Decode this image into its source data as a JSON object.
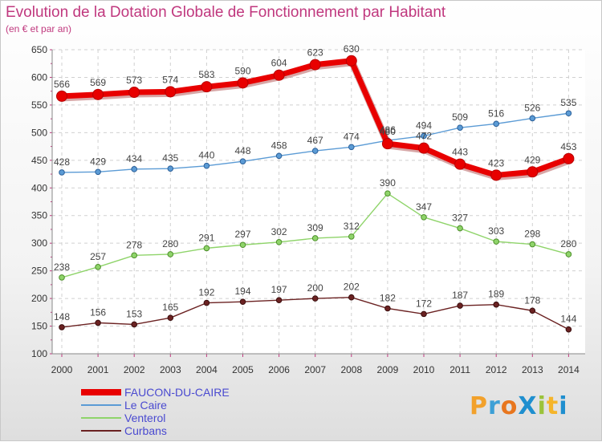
{
  "title": "Evolution de la Dotation Globale de Fonctionnement par Habitant",
  "subtitle": "(en € et par an)",
  "logo": "ProXiti",
  "chart_data": {
    "type": "line",
    "categories": [
      "2000",
      "2001",
      "2002",
      "2003",
      "2004",
      "2005",
      "2006",
      "2007",
      "2008",
      "2009",
      "2010",
      "2011",
      "2012",
      "2013",
      "2014"
    ],
    "ylim": [
      100,
      650
    ],
    "yticks": [
      100,
      150,
      200,
      250,
      300,
      350,
      400,
      450,
      500,
      550,
      600,
      650
    ],
    "grid": true,
    "legend_position": "bottom-left",
    "series": [
      {
        "name": "FAUCON-DU-CAIRE",
        "color": "#e80000",
        "values": [
          566,
          569,
          573,
          574,
          583,
          590,
          604,
          623,
          630,
          480,
          472,
          443,
          423,
          429,
          453
        ],
        "labels": [
          "566",
          "569",
          "573",
          "574",
          "583",
          "590",
          "604",
          "623",
          "630",
          "480",
          "472",
          "443",
          "423",
          "429",
          "453"
        ]
      },
      {
        "name": "Le Caire",
        "color": "#5b9bd5",
        "values": [
          428,
          429,
          434,
          435,
          440,
          448,
          458,
          467,
          474,
          486,
          494,
          509,
          516,
          526,
          535
        ],
        "labels": [
          "428",
          "429",
          "434",
          "435",
          "440",
          "448",
          "458",
          "467",
          "474",
          "486",
          "494",
          "509",
          "516",
          "526",
          "535"
        ]
      },
      {
        "name": "Venterol",
        "color": "#8fd46a",
        "values": [
          238,
          257,
          278,
          280,
          291,
          297,
          302,
          309,
          312,
          390,
          347,
          327,
          303,
          298,
          280
        ],
        "labels": [
          "238",
          "257",
          "278",
          "280",
          "291",
          "297",
          "302",
          "309",
          "312",
          "390",
          "347",
          "327",
          "303",
          "298",
          "280"
        ]
      },
      {
        "name": "Curbans",
        "color": "#6b2222",
        "values": [
          148,
          156,
          153,
          165,
          192,
          194,
          197,
          200,
          202,
          182,
          172,
          187,
          189,
          178,
          144
        ],
        "labels": [
          "148",
          "156",
          "153",
          "165",
          "192",
          "194",
          "197",
          "200",
          "202",
          "182",
          "172",
          "187",
          "189",
          "178",
          "144"
        ]
      }
    ]
  }
}
